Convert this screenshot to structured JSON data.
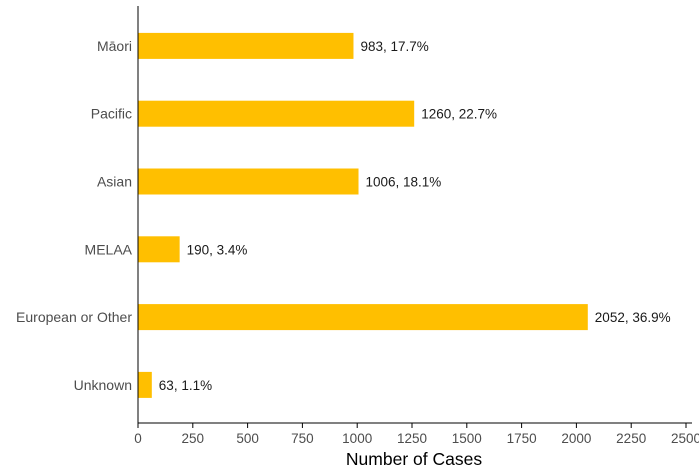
{
  "chart_data": {
    "type": "bar",
    "orientation": "horizontal",
    "categories": [
      "Māori",
      "Pacific",
      "Asian",
      "MELAA",
      "European or Other",
      "Unknown"
    ],
    "values": [
      983,
      1260,
      1006,
      190,
      2052,
      63
    ],
    "data_labels": [
      "983, 17.7%",
      "1260, 22.7%",
      "1006, 18.1%",
      "190, 3.4%",
      "2052, 36.9%",
      "63, 1.1%"
    ],
    "xlabel": "Number of Cases",
    "ylabel": "",
    "title": "",
    "xlim": [
      0,
      2500
    ],
    "xticks": [
      0,
      250,
      500,
      750,
      1000,
      1250,
      1500,
      1750,
      2000,
      2250,
      2500
    ],
    "xtick_labels": [
      "0",
      "250",
      "500",
      "750",
      "1000",
      "1250",
      "1500",
      "1750",
      "2000",
      "2250",
      "2500"
    ],
    "bar_color": "#FFBF00",
    "grid": false,
    "legend": "none"
  }
}
